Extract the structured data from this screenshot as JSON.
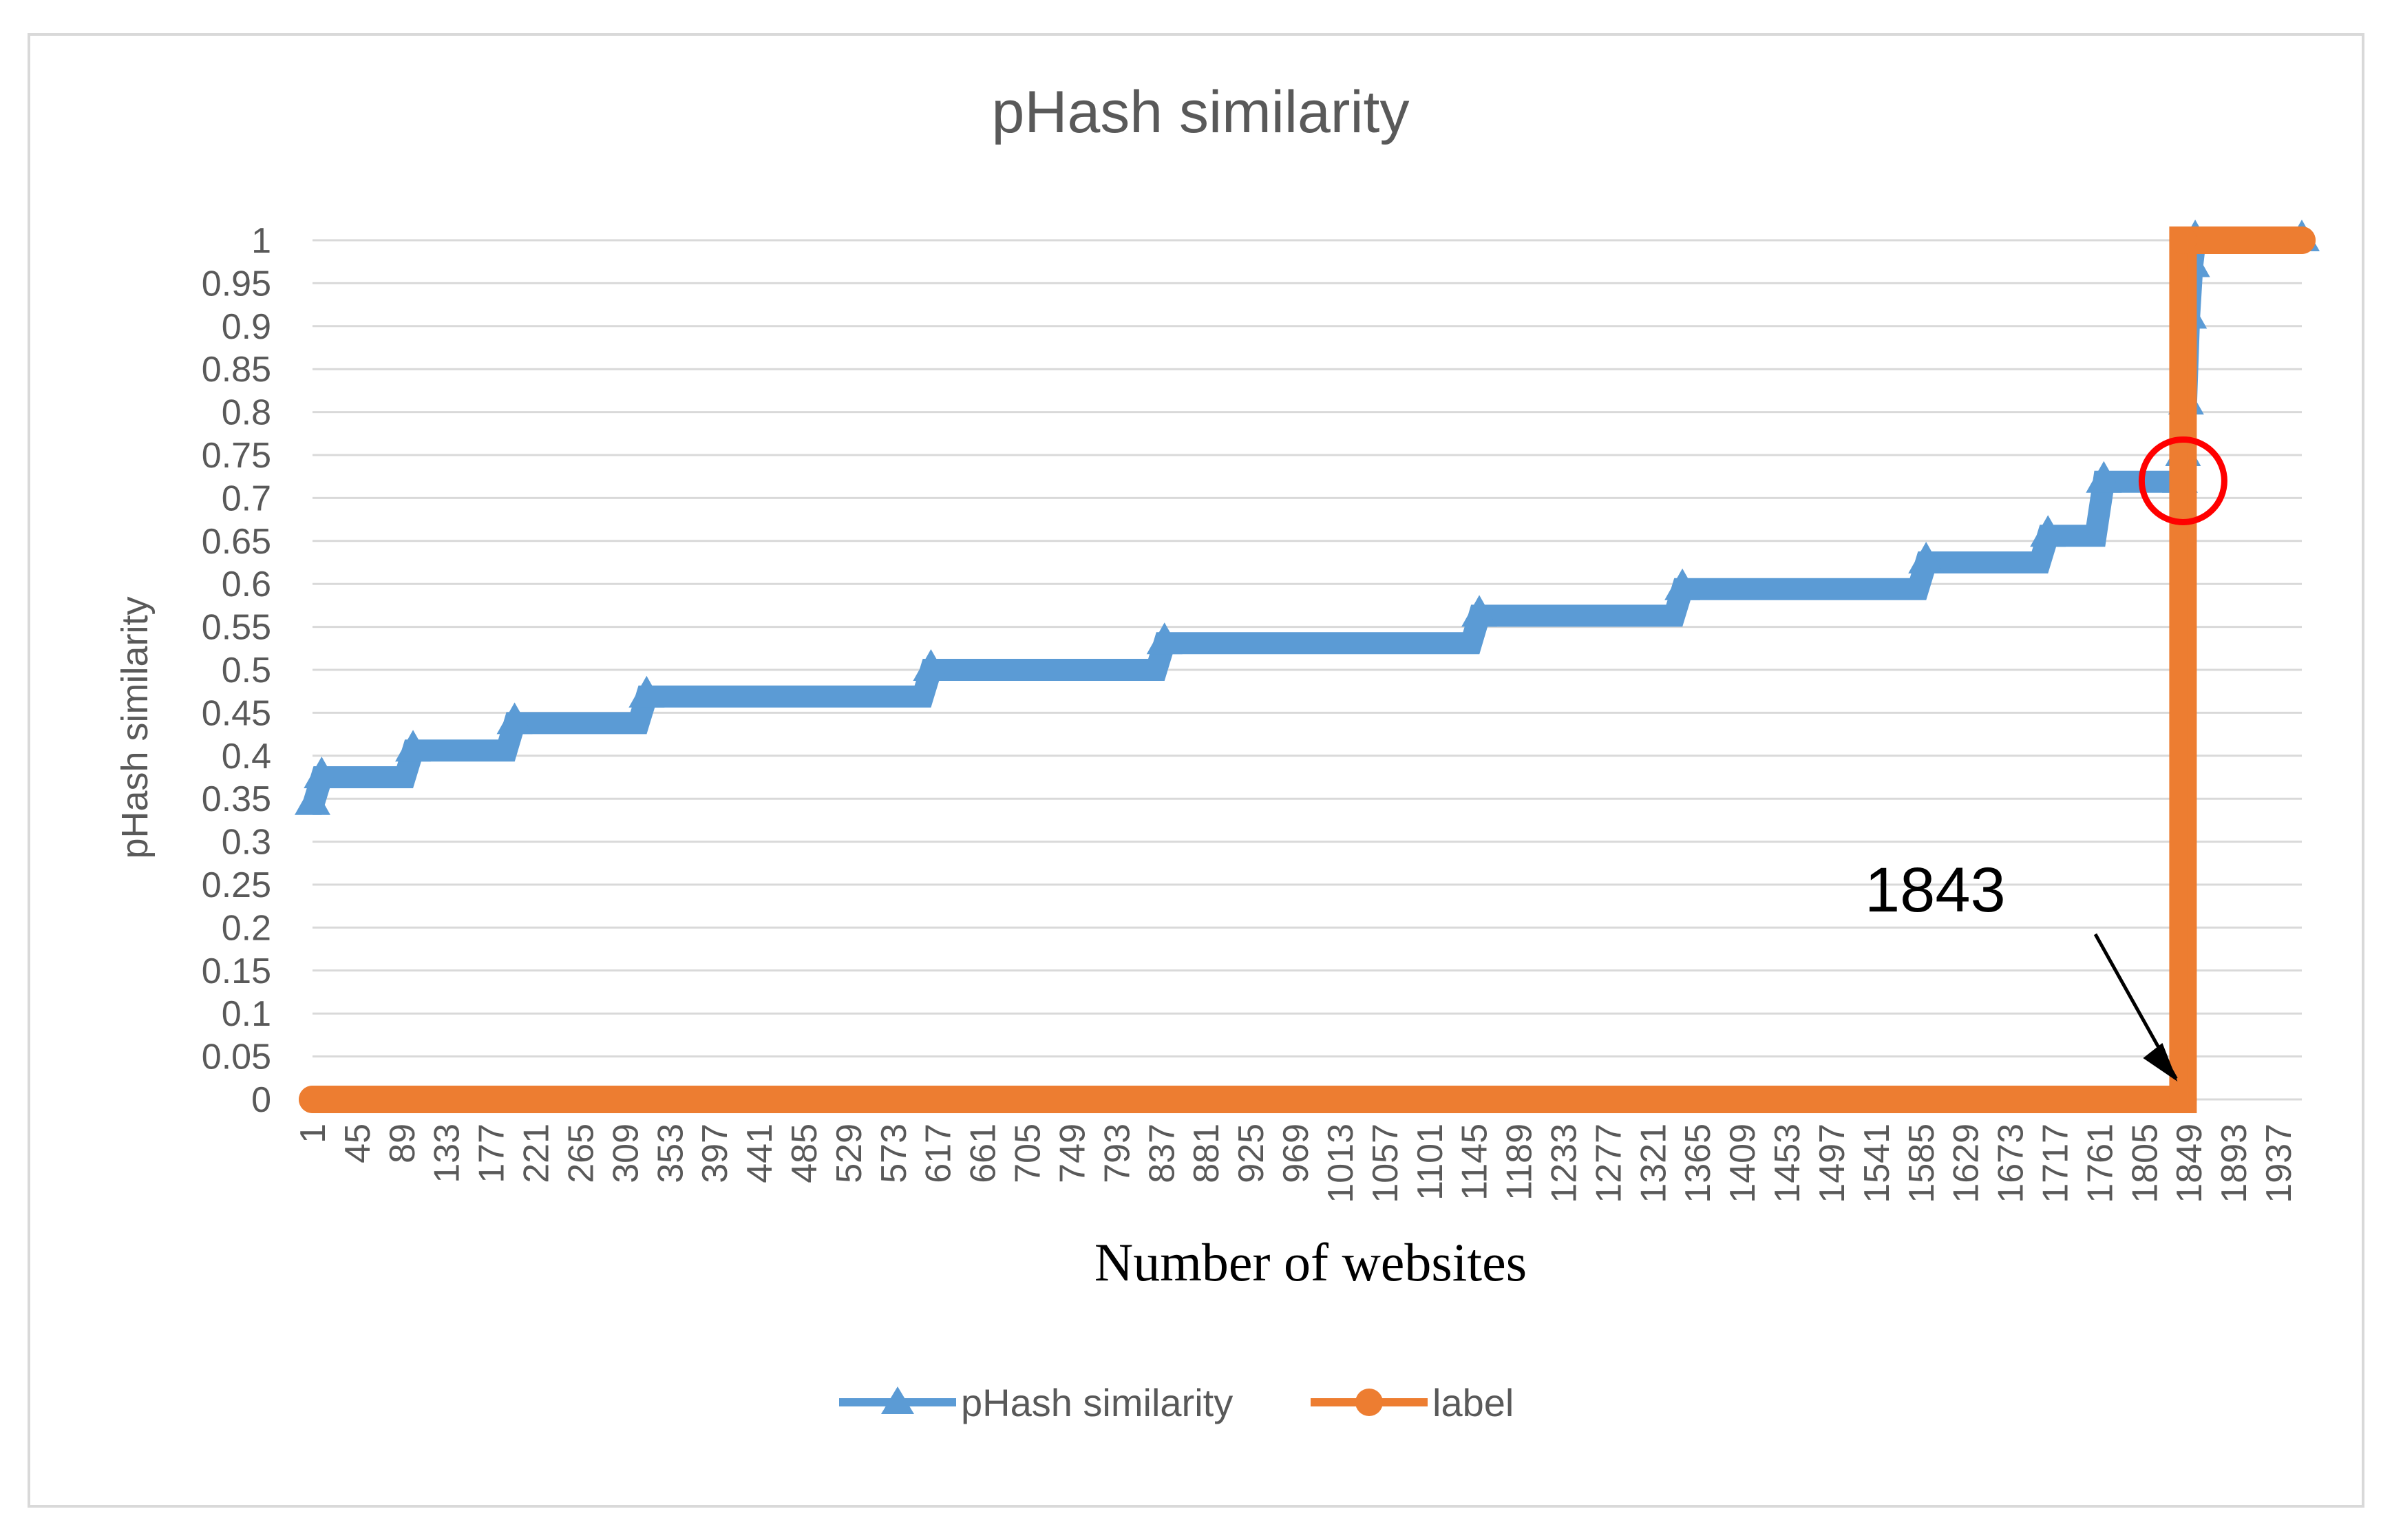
{
  "chart_data": {
    "type": "line",
    "title": "pHash similarity",
    "xlabel": "Number of websites",
    "ylabel": "pHash similarity",
    "ylim": [
      0,
      1
    ],
    "xlim": [
      1,
      1960
    ],
    "grid": true,
    "legend_position": "bottom",
    "y_ticks": [
      "0",
      "0.05",
      "0.1",
      "0.15",
      "0.2",
      "0.25",
      "0.3",
      "0.35",
      "0.4",
      "0.45",
      "0.5",
      "0.55",
      "0.6",
      "0.65",
      "0.7",
      "0.75",
      "0.8",
      "0.85",
      "0.9",
      "0.95",
      "1"
    ],
    "x_ticks": [
      "1",
      "45",
      "89",
      "133",
      "177",
      "221",
      "265",
      "309",
      "353",
      "397",
      "441",
      "485",
      "529",
      "573",
      "617",
      "661",
      "705",
      "749",
      "793",
      "837",
      "881",
      "925",
      "969",
      "1013",
      "1057",
      "1101",
      "1145",
      "1189",
      "1233",
      "1277",
      "1321",
      "1365",
      "1409",
      "1453",
      "1497",
      "1541",
      "1585",
      "1629",
      "1673",
      "1717",
      "1761",
      "1805",
      "1849",
      "1893",
      "1937"
    ],
    "series": [
      {
        "name": "pHash similarity",
        "color": "#5b9bd5",
        "marker": "triangle",
        "x": [
          1,
          10,
          100,
          200,
          330,
          610,
          840,
          1150,
          1350,
          1590,
          1710,
          1765,
          1840,
          1843,
          1846,
          1849,
          1852,
          1855,
          1960
        ],
        "y": [
          0.344,
          0.375,
          0.406,
          0.438,
          0.469,
          0.5,
          0.531,
          0.563,
          0.594,
          0.625,
          0.656,
          0.719,
          0.719,
          0.75,
          0.81,
          0.91,
          0.97,
          1.0,
          1.0
        ]
      },
      {
        "name": "label",
        "color": "#ed7d31",
        "marker": "circle",
        "x": [
          1,
          1843,
          1843,
          1960
        ],
        "y": [
          0,
          0,
          1,
          1
        ]
      }
    ],
    "annotations": [
      {
        "text": "1843",
        "x": 1843,
        "y": 0,
        "arrow": true
      },
      {
        "text": "",
        "shape": "circle",
        "color": "#ff0000",
        "x": 1843,
        "y": 0.72
      }
    ]
  }
}
